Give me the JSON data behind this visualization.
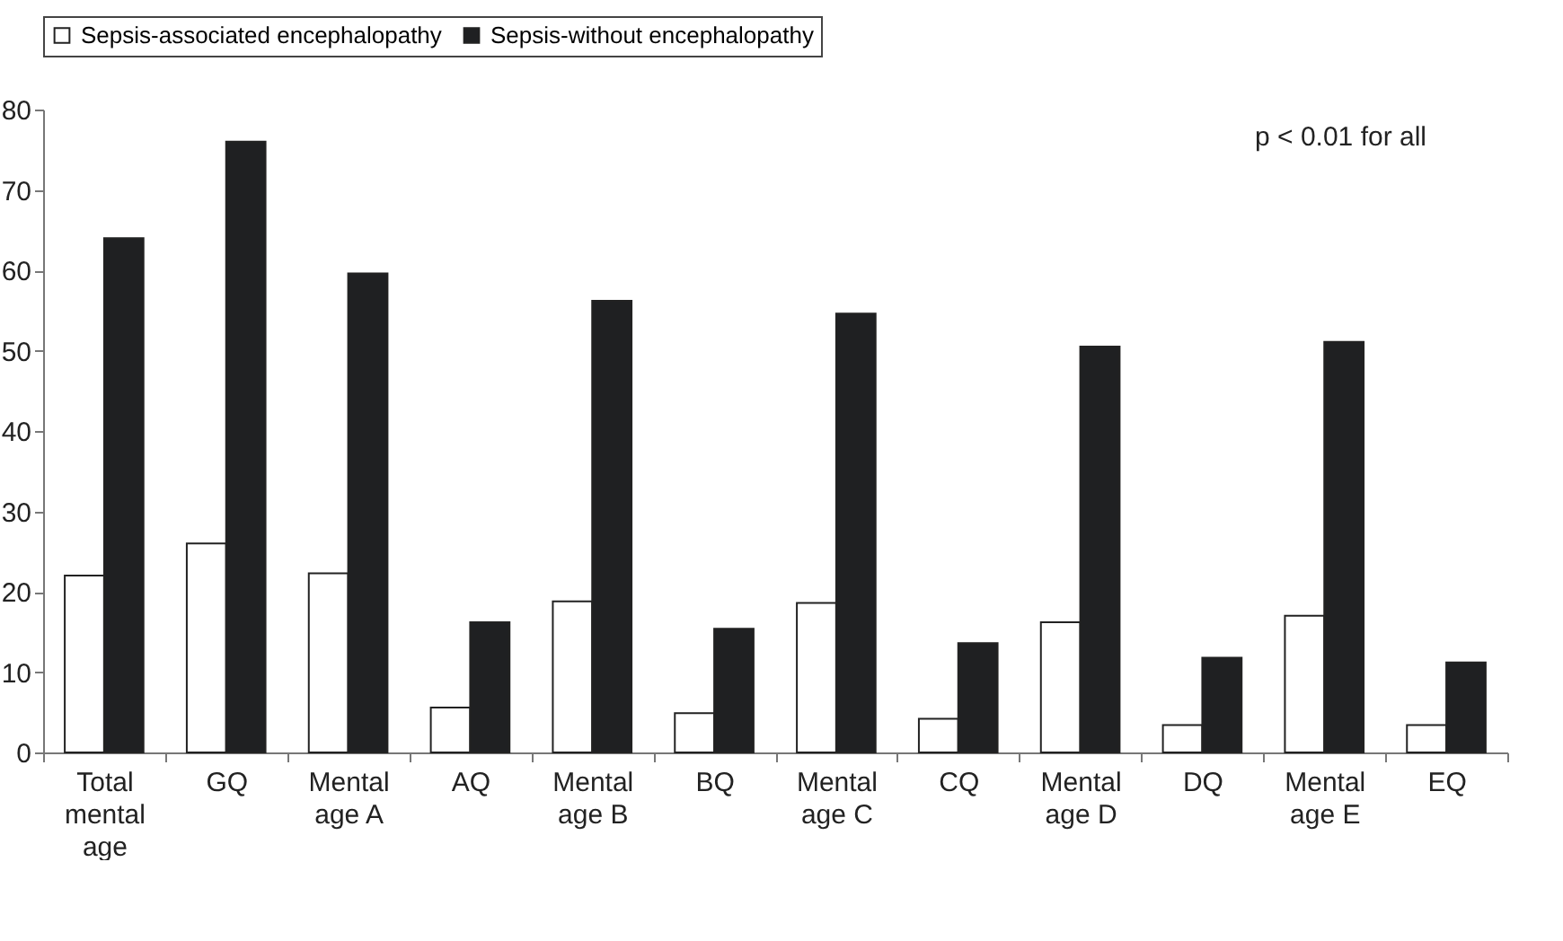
{
  "chart_data": {
    "type": "bar",
    "categories": [
      "Total mental age",
      "GQ",
      "Mental age A",
      "AQ",
      "Mental age B",
      "BQ",
      "Mental age C",
      "CQ",
      "Mental age D",
      "DQ",
      "Mental age E",
      "EQ"
    ],
    "series": [
      {
        "name": "Sepsis-associated encephalopathy",
        "color": "#ffffff",
        "values": [
          22,
          26,
          22.3,
          5.6,
          18.8,
          4.9,
          18.6,
          4.2,
          16.2,
          3.4,
          17,
          3.4
        ]
      },
      {
        "name": "Sepsis-without encephalopathy",
        "color": "#1f2022",
        "values": [
          64,
          76,
          59.6,
          16.2,
          56.2,
          15.4,
          54.6,
          13.6,
          50.5,
          11.8,
          51.1,
          11.2
        ]
      }
    ],
    "ylim": [
      0,
      80
    ],
    "yticks": [
      0,
      10,
      20,
      30,
      40,
      50,
      60,
      70,
      80
    ],
    "annotations": [
      "p < 0.01 for all"
    ],
    "grid": false,
    "legend": "top"
  }
}
